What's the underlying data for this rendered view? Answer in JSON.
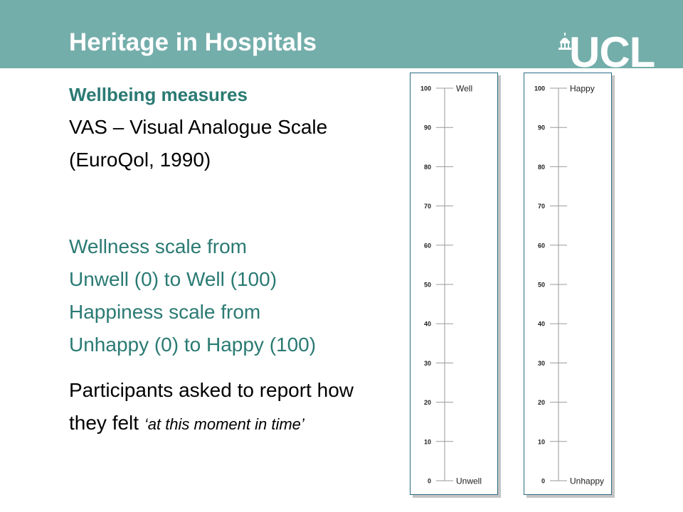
{
  "header": {
    "title": "Heritage in Hospitals",
    "logo_text": "UCL",
    "band_color": "#74aeab"
  },
  "content": {
    "heading": "Wellbeing measures",
    "vas_line": "VAS – Visual Analogue Scale",
    "source_line": "(EuroQol, 1990)",
    "wellness_line1": "Wellness scale from",
    "wellness_line2": "Unwell (0) to Well (100)",
    "happiness_line1": "Happiness scale from",
    "happiness_line2": "Unhappy (0) to Happy (100)",
    "participants_line1": "Participants asked to report how",
    "participants_line2_plain": "they felt ",
    "participants_line2_italic": "‘at this moment in time’"
  },
  "scales": [
    {
      "top_label": "Well",
      "bottom_label": "Unwell",
      "ticks": [
        "100",
        "90",
        "80",
        "70",
        "60",
        "50",
        "40",
        "30",
        "20",
        "10",
        "0"
      ]
    },
    {
      "top_label": "Happy",
      "bottom_label": "Unhappy",
      "ticks": [
        "100",
        "90",
        "80",
        "70",
        "60",
        "50",
        "40",
        "30",
        "20",
        "10",
        "0"
      ]
    }
  ],
  "colors": {
    "accent_teal": "#2a7a73",
    "scale_border": "#2b6a84"
  }
}
